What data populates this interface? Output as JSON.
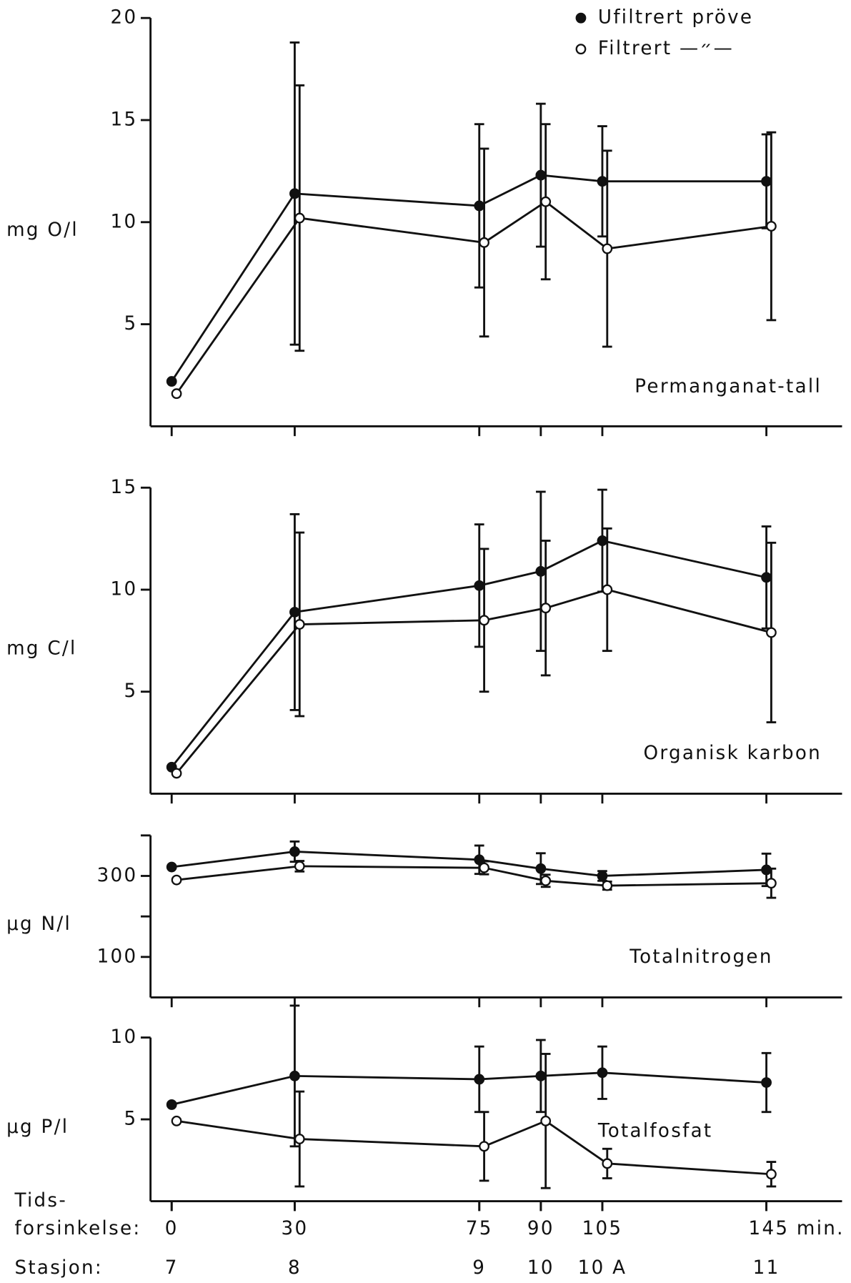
{
  "chart_data": [
    {
      "type": "line",
      "ylabel": "mg O/l",
      "annotation": "Permanganat-tall",
      "legend": "upper right",
      "x": [
        0,
        30,
        75,
        90,
        105,
        145
      ],
      "xlim": [
        -5,
        163
      ],
      "ylim": [
        0,
        20
      ],
      "yticks": [
        5,
        10,
        15,
        20
      ],
      "series": [
        {
          "name": "Ufiltrert pröve",
          "color": "#111111",
          "marker": "filled",
          "values": [
            2.2,
            11.4,
            10.8,
            12.3,
            12.0,
            12.0
          ],
          "errors": [
            null,
            7.4,
            4.0,
            3.5,
            2.7,
            2.3
          ]
        },
        {
          "name": "Filtrert —״—",
          "color": "#111111",
          "marker": "open",
          "values": [
            1.6,
            10.2,
            9.0,
            11.0,
            8.7,
            9.8
          ],
          "errors": [
            null,
            6.5,
            4.6,
            3.8,
            4.8,
            4.6
          ]
        }
      ]
    },
    {
      "type": "line",
      "ylabel": "mg C/l",
      "annotation": "Organisk karbon",
      "x": [
        0,
        30,
        75,
        90,
        105,
        145
      ],
      "xlim": [
        -5,
        163
      ],
      "ylim": [
        0,
        15
      ],
      "yticks": [
        5,
        10,
        15
      ],
      "series": [
        {
          "name": "Ufiltrert pröve",
          "color": "#111111",
          "marker": "filled",
          "values": [
            1.3,
            8.9,
            10.2,
            10.9,
            12.4,
            10.6
          ],
          "errors": [
            null,
            4.8,
            3.0,
            3.9,
            2.5,
            2.5
          ]
        },
        {
          "name": "Filtrert —״—",
          "color": "#111111",
          "marker": "open",
          "values": [
            1.0,
            8.3,
            8.5,
            9.1,
            10.0,
            7.9
          ],
          "errors": [
            null,
            4.5,
            3.5,
            3.3,
            3.0,
            4.4
          ]
        }
      ]
    },
    {
      "type": "line",
      "ylabel": "µg N/l",
      "annotation": "Totalnitrogen",
      "x": [
        0,
        30,
        75,
        90,
        105,
        145
      ],
      "xlim": [
        -5,
        163
      ],
      "ylim": [
        0,
        400
      ],
      "yticks": [
        100,
        300
      ],
      "minor_yticks": [
        200,
        400
      ],
      "series": [
        {
          "name": "Ufiltrert pröve",
          "color": "#111111",
          "marker": "filled",
          "values": [
            322,
            360,
            340,
            318,
            300,
            315
          ],
          "errors": [
            null,
            25,
            35,
            38,
            12,
            40
          ]
        },
        {
          "name": "Filtrert —״—",
          "color": "#111111",
          "marker": "open",
          "values": [
            290,
            324,
            320,
            288,
            276,
            282
          ],
          "errors": [
            null,
            13,
            16,
            15,
            10,
            36
          ]
        }
      ]
    },
    {
      "type": "line",
      "ylabel": "µg P/l",
      "annotation": "Totalfosfat",
      "x": [
        0,
        30,
        75,
        90,
        105,
        145
      ],
      "xlim": [
        -5,
        163
      ],
      "ylim": [
        0,
        10
      ],
      "yticks": [
        5,
        10
      ],
      "xlabel": [
        "Tids-",
        "forsinkelse:"
      ],
      "xticks": [
        0,
        30,
        75,
        90,
        105,
        {
          "value": 145,
          "label": "145 min."
        }
      ],
      "stations_label": "Stasjon:",
      "stations": [
        "7",
        "8",
        "9",
        "10",
        "10 A",
        "11"
      ],
      "series": [
        {
          "name": "Ufiltrert pröve",
          "color": "#111111",
          "marker": "filled",
          "values": [
            5.9,
            7.65,
            7.45,
            7.65,
            7.85,
            7.25
          ],
          "errors": [
            null,
            4.3,
            2.0,
            2.2,
            1.6,
            1.8
          ]
        },
        {
          "name": "Filtrert —״—",
          "color": "#111111",
          "marker": "open",
          "values": [
            4.9,
            3.8,
            3.35,
            4.9,
            2.3,
            1.65
          ],
          "errors": [
            null,
            2.9,
            2.1,
            4.1,
            0.9,
            0.75
          ]
        }
      ]
    }
  ]
}
